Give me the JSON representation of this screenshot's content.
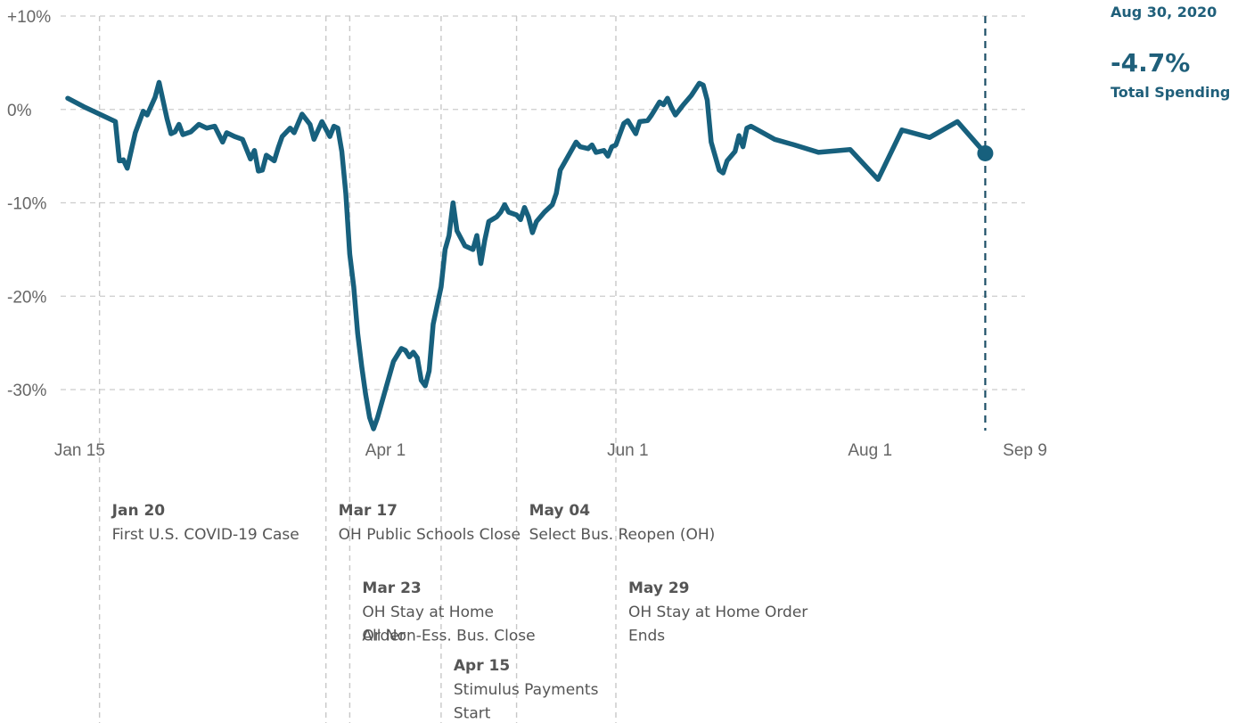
{
  "chart_data": {
    "type": "line",
    "title": "",
    "xlabel": "",
    "ylabel": "",
    "ylim": [
      -35,
      10
    ],
    "y_ticks": [
      {
        "value": 10,
        "label": "+10%"
      },
      {
        "value": 0,
        "label": "0%"
      },
      {
        "value": -10,
        "label": "-10%"
      },
      {
        "value": -20,
        "label": "-20%"
      },
      {
        "value": -30,
        "label": "-30%"
      }
    ],
    "x_ticks": [
      {
        "date": "2020-01-15",
        "label": "Jan 15"
      },
      {
        "date": "2020-04-01",
        "label": "Apr 1"
      },
      {
        "date": "2020-06-01",
        "label": "Jun 1"
      },
      {
        "date": "2020-08-01",
        "label": "Aug 1"
      },
      {
        "date": "2020-09-09",
        "label": "Sep 9"
      }
    ],
    "xlim": [
      "2020-01-12",
      "2020-09-09"
    ],
    "grid": true,
    "color": "#17607d",
    "series": [
      {
        "name": "Total Spending",
        "points": [
          [
            "2020-01-12",
            1.2
          ],
          [
            "2020-01-16",
            0.3
          ],
          [
            "2020-01-20",
            -0.5
          ],
          [
            "2020-01-24",
            -1.3
          ],
          [
            "2020-01-25",
            -5.5
          ],
          [
            "2020-01-26",
            -5.4
          ],
          [
            "2020-01-27",
            -6.3
          ],
          [
            "2020-01-29",
            -2.5
          ],
          [
            "2020-01-31",
            -0.2
          ],
          [
            "2020-02-01",
            -0.6
          ],
          [
            "2020-02-03",
            1.3
          ],
          [
            "2020-02-04",
            2.9
          ],
          [
            "2020-02-06",
            -1.0
          ],
          [
            "2020-02-07",
            -2.6
          ],
          [
            "2020-02-08",
            -2.4
          ],
          [
            "2020-02-09",
            -1.6
          ],
          [
            "2020-02-10",
            -2.7
          ],
          [
            "2020-02-12",
            -2.4
          ],
          [
            "2020-02-14",
            -1.6
          ],
          [
            "2020-02-16",
            -2.0
          ],
          [
            "2020-02-18",
            -1.8
          ],
          [
            "2020-02-20",
            -3.5
          ],
          [
            "2020-02-21",
            -2.5
          ],
          [
            "2020-02-23",
            -2.9
          ],
          [
            "2020-02-25",
            -3.2
          ],
          [
            "2020-02-27",
            -5.3
          ],
          [
            "2020-02-28",
            -4.4
          ],
          [
            "2020-02-29",
            -6.6
          ],
          [
            "2020-03-01",
            -6.5
          ],
          [
            "2020-03-02",
            -4.9
          ],
          [
            "2020-03-04",
            -5.5
          ],
          [
            "2020-03-05",
            -4.1
          ],
          [
            "2020-03-06",
            -2.9
          ],
          [
            "2020-03-08",
            -2.0
          ],
          [
            "2020-03-09",
            -2.5
          ],
          [
            "2020-03-11",
            -0.5
          ],
          [
            "2020-03-13",
            -1.6
          ],
          [
            "2020-03-14",
            -3.2
          ],
          [
            "2020-03-16",
            -1.3
          ],
          [
            "2020-03-18",
            -2.9
          ],
          [
            "2020-03-19",
            -1.8
          ],
          [
            "2020-03-20",
            -2.0
          ],
          [
            "2020-03-21",
            -4.5
          ],
          [
            "2020-03-22",
            -9.0
          ],
          [
            "2020-03-23",
            -15.5
          ],
          [
            "2020-03-24",
            -19.0
          ],
          [
            "2020-03-25",
            -24.0
          ],
          [
            "2020-03-26",
            -27.5
          ],
          [
            "2020-03-27",
            -30.5
          ],
          [
            "2020-03-28",
            -33.0
          ],
          [
            "2020-03-29",
            -34.2
          ],
          [
            "2020-03-30",
            -33.0
          ],
          [
            "2020-04-01",
            -30.0
          ],
          [
            "2020-04-03",
            -27.0
          ],
          [
            "2020-04-05",
            -25.6
          ],
          [
            "2020-04-06",
            -25.8
          ],
          [
            "2020-04-07",
            -26.5
          ],
          [
            "2020-04-08",
            -26.0
          ],
          [
            "2020-04-09",
            -26.6
          ],
          [
            "2020-04-10",
            -29.0
          ],
          [
            "2020-04-11",
            -29.6
          ],
          [
            "2020-04-12",
            -28.0
          ],
          [
            "2020-04-13",
            -23.0
          ],
          [
            "2020-04-15",
            -19.0
          ],
          [
            "2020-04-16",
            -15.0
          ],
          [
            "2020-04-17",
            -13.5
          ],
          [
            "2020-04-18",
            -10.0
          ],
          [
            "2020-04-19",
            -13.0
          ],
          [
            "2020-04-21",
            -14.6
          ],
          [
            "2020-04-23",
            -15.0
          ],
          [
            "2020-04-24",
            -13.5
          ],
          [
            "2020-04-25",
            -16.5
          ],
          [
            "2020-04-26",
            -14.0
          ],
          [
            "2020-04-27",
            -12.0
          ],
          [
            "2020-04-29",
            -11.5
          ],
          [
            "2020-04-30",
            -11.0
          ],
          [
            "2020-05-01",
            -10.2
          ],
          [
            "2020-05-02",
            -11.0
          ],
          [
            "2020-05-04",
            -11.3
          ],
          [
            "2020-05-05",
            -11.8
          ],
          [
            "2020-05-06",
            -10.5
          ],
          [
            "2020-05-07",
            -11.5
          ],
          [
            "2020-05-08",
            -13.2
          ],
          [
            "2020-05-09",
            -12.0
          ],
          [
            "2020-05-11",
            -11.0
          ],
          [
            "2020-05-13",
            -10.2
          ],
          [
            "2020-05-14",
            -9.0
          ],
          [
            "2020-05-15",
            -6.5
          ],
          [
            "2020-05-17",
            -5.0
          ],
          [
            "2020-05-19",
            -3.5
          ],
          [
            "2020-05-20",
            -4.0
          ],
          [
            "2020-05-22",
            -4.2
          ],
          [
            "2020-05-23",
            -3.8
          ],
          [
            "2020-05-24",
            -4.6
          ],
          [
            "2020-05-26",
            -4.4
          ],
          [
            "2020-05-27",
            -5.0
          ],
          [
            "2020-05-28",
            -4.0
          ],
          [
            "2020-05-29",
            -3.8
          ],
          [
            "2020-05-31",
            -1.5
          ],
          [
            "2020-06-01",
            -1.2
          ],
          [
            "2020-06-03",
            -2.6
          ],
          [
            "2020-06-04",
            -1.3
          ],
          [
            "2020-06-06",
            -1.2
          ],
          [
            "2020-06-07",
            -0.6
          ],
          [
            "2020-06-09",
            0.8
          ],
          [
            "2020-06-10",
            0.5
          ],
          [
            "2020-06-11",
            1.2
          ],
          [
            "2020-06-12",
            0.2
          ],
          [
            "2020-06-13",
            -0.6
          ],
          [
            "2020-06-15",
            0.5
          ],
          [
            "2020-06-17",
            1.5
          ],
          [
            "2020-06-19",
            2.8
          ],
          [
            "2020-06-20",
            2.6
          ],
          [
            "2020-06-21",
            1.0
          ],
          [
            "2020-06-22",
            -3.5
          ],
          [
            "2020-06-24",
            -6.5
          ],
          [
            "2020-06-25",
            -6.8
          ],
          [
            "2020-06-26",
            -5.5
          ],
          [
            "2020-06-28",
            -4.5
          ],
          [
            "2020-06-29",
            -2.8
          ],
          [
            "2020-06-30",
            -4.0
          ],
          [
            "2020-07-01",
            -2.0
          ],
          [
            "2020-07-02",
            -1.8
          ],
          [
            "2020-07-05",
            -2.5
          ],
          [
            "2020-07-08",
            -3.2
          ],
          [
            "2020-07-13",
            -3.8
          ],
          [
            "2020-07-19",
            -4.6
          ],
          [
            "2020-07-27",
            -4.3
          ],
          [
            "2020-08-03",
            -7.5
          ],
          [
            "2020-08-09",
            -2.2
          ],
          [
            "2020-08-16",
            -3.0
          ],
          [
            "2020-08-23",
            -1.3
          ],
          [
            "2020-08-30",
            -4.7
          ]
        ]
      }
    ],
    "current": {
      "date_label": "Aug 30, 2020",
      "value_label": "-4.7%",
      "series_label": "Total Spending",
      "date": "2020-08-30",
      "value": -4.7
    },
    "events": [
      {
        "date": "2020-01-20",
        "title": "Jan 20",
        "lines": [
          "First U.S. COVID-19 Case"
        ],
        "row": 0
      },
      {
        "date": "2020-03-17",
        "title": "Mar 17",
        "lines": [
          "OH Public Schools Close"
        ],
        "row": 0
      },
      {
        "date": "2020-03-23",
        "title": "Mar 23",
        "lines": [
          "OH Stay at Home",
          "Order"
        ],
        "row": 1
      },
      {
        "date": "2020-03-23",
        "title": "",
        "lines": [
          "",
          "All Non-Ess. Bus. Close"
        ],
        "row": 1,
        "offset": true
      },
      {
        "date": "2020-04-15",
        "title": "Apr 15",
        "lines": [
          "Stimulus Payments",
          "Start"
        ],
        "row": 2
      },
      {
        "date": "2020-05-04",
        "title": "May 04",
        "lines": [
          "Select Bus. Reopen (OH)"
        ],
        "row": 0
      },
      {
        "date": "2020-05-29",
        "title": "May 29",
        "lines": [
          "OH Stay at Home Order",
          "Ends"
        ],
        "row": 1
      }
    ]
  }
}
